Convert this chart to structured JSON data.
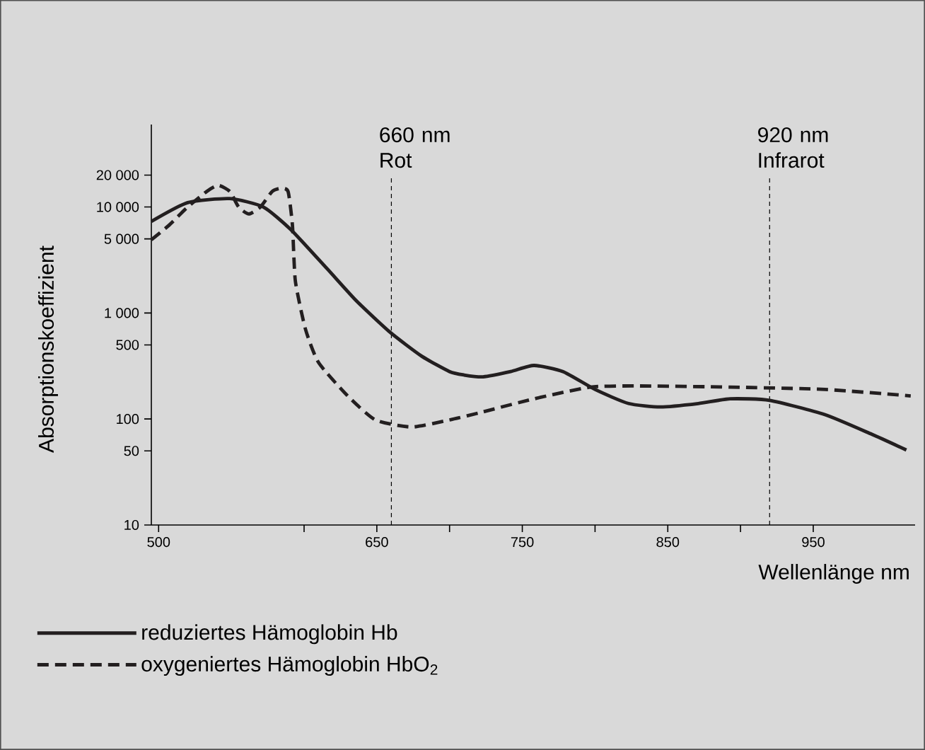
{
  "chart_data": {
    "type": "line",
    "xlabel": "Wellenlänge nm",
    "ylabel": "Absorptionskoeffizient",
    "log": "y",
    "grid": false,
    "legend": "bottom left",
    "marker": "none",
    "xlim": [
      495,
      1020
    ],
    "ylim": [
      10,
      60000
    ],
    "xticks": [
      500,
      {
        "value": 600,
        "label": null
      },
      {
        "value": 650,
        "label": "650"
      },
      {
        "value": 700,
        "label": null
      },
      {
        "value": 750,
        "label": "750"
      },
      {
        "value": 800,
        "label": null
      },
      {
        "value": 850,
        "label": "850"
      },
      {
        "value": 900,
        "label": null
      },
      {
        "value": 950,
        "label": "950"
      }
    ],
    "yticks": [
      10,
      50,
      100,
      500,
      {
        "value": 1000,
        "label": "1 000"
      },
      {
        "value": 5000,
        "label": "5 000"
      },
      {
        "value": 10000,
        "label": "10 000"
      },
      {
        "value": 20000,
        "label": "20 000"
      }
    ],
    "ref_lines": [
      {
        "axis": "x",
        "value": 660,
        "label": "660 nm Rot",
        "line_style": "dashed"
      },
      {
        "axis": "x",
        "value": 920,
        "label": "920 nm Infrarot",
        "line_style": "dashed"
      }
    ],
    "series": [
      {
        "name": "reduziertes Hämoglobin Hb",
        "color": "#231f20",
        "line_style": "solid",
        "x": [
          495,
          520,
          549,
          572,
          591,
          616,
          636,
          659,
          681,
          700,
          710,
          723,
          742,
          758,
          778,
          800,
          823,
          845,
          871,
          893,
          920,
          958,
          990,
          1014
        ],
        "values": [
          7300,
          11000,
          12000,
          10000,
          6100,
          2600,
          1300,
          660,
          390,
          280,
          260,
          250,
          280,
          320,
          280,
          190,
          140,
          130,
          140,
          155,
          150,
          110,
          72,
          51
        ]
      },
      {
        "name": "oxygeniertes Hämoglobin HbO$_{2}$",
        "color": "#231f20",
        "line_style": "dashed",
        "x": [
          495,
          507,
          520,
          533,
          541,
          549,
          555,
          562,
          570,
          578,
          584,
          589,
          592,
          594,
          601,
          610,
          630,
          649,
          674,
          700,
          720,
          758,
          797,
          829,
          893,
          958,
          1017
        ],
        "values": [
          4900,
          6700,
          10000,
          14000,
          16000,
          14000,
          10000,
          8600,
          10000,
          14000,
          15000,
          14000,
          6700,
          2000,
          700,
          340,
          165,
          98,
          84,
          98,
          114,
          155,
          200,
          205,
          200,
          190,
          165
        ]
      }
    ]
  }
}
